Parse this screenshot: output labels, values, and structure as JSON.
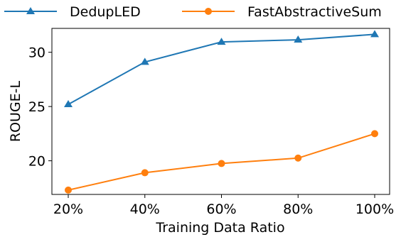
{
  "chart_data": {
    "type": "line",
    "categories": [
      "20%",
      "40%",
      "60%",
      "80%",
      "100%"
    ],
    "series": [
      {
        "name": "DedupLED",
        "values": [
          25.2,
          29.1,
          30.95,
          31.15,
          31.65
        ],
        "color": "#1f77b4",
        "marker": "triangle"
      },
      {
        "name": "FastAbstractiveSum",
        "values": [
          17.3,
          18.9,
          19.75,
          20.25,
          22.5
        ],
        "color": "#ff7f0e",
        "marker": "circle"
      }
    ],
    "xlabel": "Training Data Ratio",
    "ylabel": "ROUGE-L",
    "ylim": [
      16.9,
      32.2
    ],
    "yticks": [
      20,
      25,
      30
    ],
    "grid": false,
    "legend": {
      "placement": "top"
    }
  }
}
